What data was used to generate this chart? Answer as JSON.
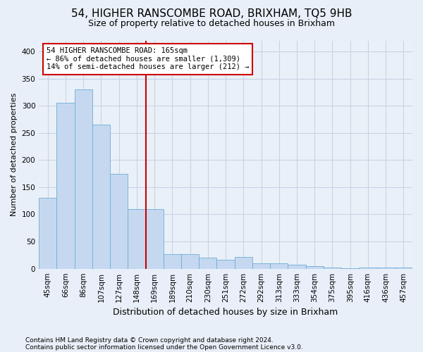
{
  "title": "54, HIGHER RANSCOMBE ROAD, BRIXHAM, TQ5 9HB",
  "subtitle": "Size of property relative to detached houses in Brixham",
  "xlabel": "Distribution of detached houses by size in Brixham",
  "ylabel": "Number of detached properties",
  "categories": [
    "45sqm",
    "66sqm",
    "86sqm",
    "107sqm",
    "127sqm",
    "148sqm",
    "169sqm",
    "189sqm",
    "210sqm",
    "230sqm",
    "251sqm",
    "272sqm",
    "292sqm",
    "313sqm",
    "333sqm",
    "354sqm",
    "375sqm",
    "395sqm",
    "416sqm",
    "436sqm",
    "457sqm"
  ],
  "values": [
    130,
    305,
    330,
    265,
    175,
    110,
    110,
    27,
    27,
    20,
    17,
    22,
    10,
    10,
    7,
    5,
    2,
    1,
    2,
    2,
    2
  ],
  "bar_color": "#c5d8f0",
  "bar_edge_color": "#6baed6",
  "vline_x_index": 6,
  "vline_position": "left",
  "annotation_text": "54 HIGHER RANSCOMBE ROAD: 165sqm\n← 86% of detached houses are smaller (1,309)\n14% of semi-detached houses are larger (212) →",
  "annotation_box_color": "#ffffff",
  "annotation_box_edge_color": "#cc0000",
  "vline_color": "#cc0000",
  "footnote1": "Contains HM Land Registry data © Crown copyright and database right 2024.",
  "footnote2": "Contains public sector information licensed under the Open Government Licence v3.0.",
  "ylim": [
    0,
    420
  ],
  "yticks": [
    0,
    50,
    100,
    150,
    200,
    250,
    300,
    350,
    400
  ],
  "bg_color": "#e8eff8",
  "plot_bg_color": "#eaf0f8",
  "grid_color": "#c8d4e4",
  "title_fontsize": 11,
  "subtitle_fontsize": 9,
  "xlabel_fontsize": 9,
  "ylabel_fontsize": 8,
  "tick_fontsize": 7.5,
  "annot_fontsize": 7.5
}
